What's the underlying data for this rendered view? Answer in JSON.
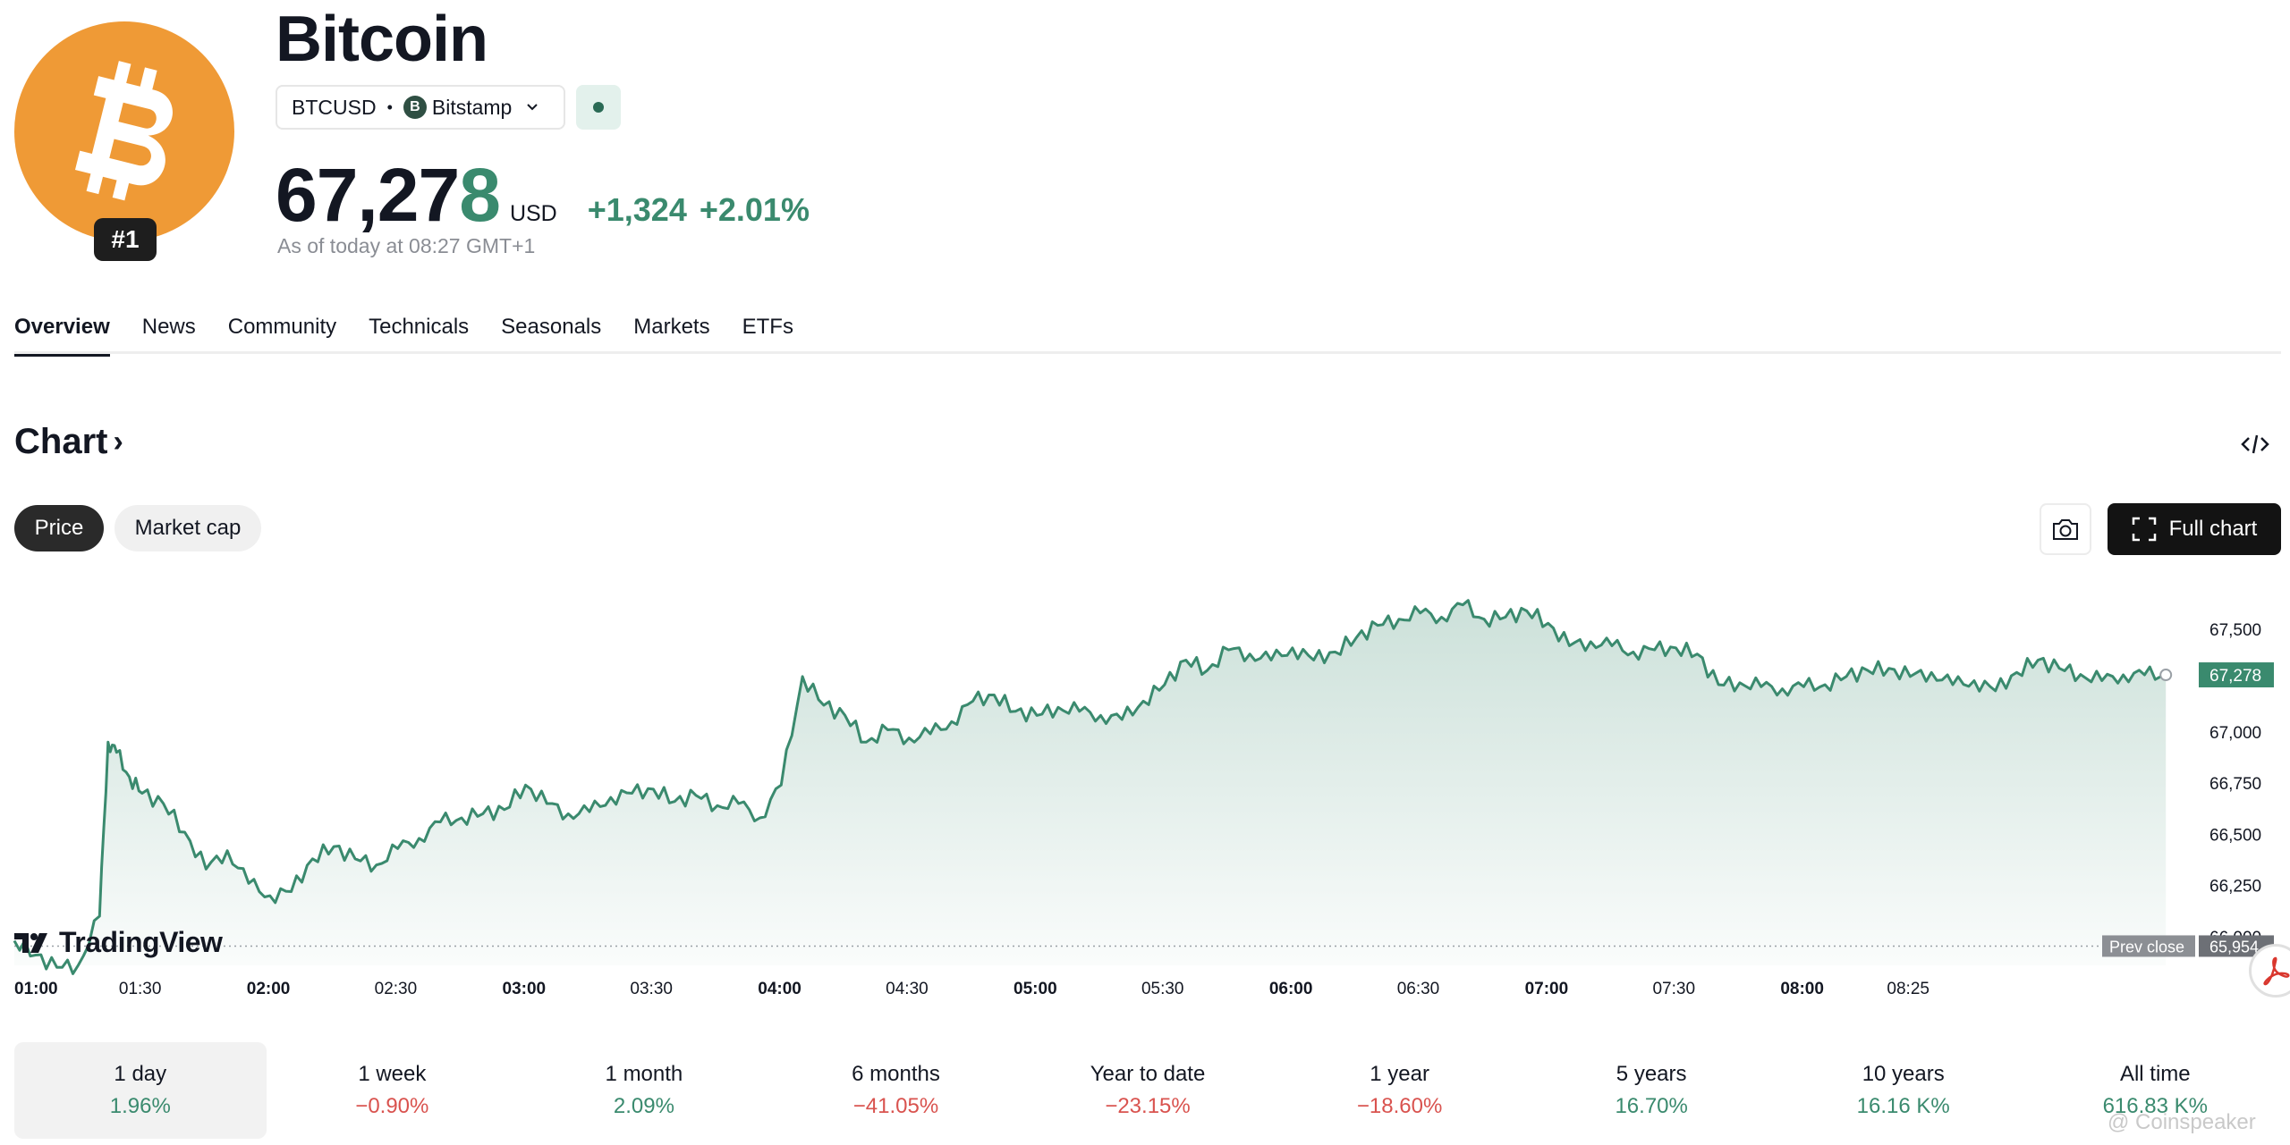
{
  "asset": {
    "name": "Bitcoin",
    "rank": "#1",
    "symbol": "BTCUSD",
    "separator": "•",
    "exchange": "Bitstamp",
    "exchange_badge": "B",
    "price_main": "67,27",
    "price_last_digit": "8",
    "currency": "USD",
    "change_abs": "+1,324",
    "change_pct": "+2.01%",
    "as_of": "As of today at 08:27 GMT+1"
  },
  "tabs": [
    "Overview",
    "News",
    "Community",
    "Technicals",
    "Seasonals",
    "Markets",
    "ETFs"
  ],
  "chart_section": {
    "title": "Chart",
    "arrow": "›",
    "pill_price": "Price",
    "pill_market_cap": "Market cap",
    "full_chart_label": "Full chart",
    "tradingview_label": "TradingView"
  },
  "chart_data": {
    "type": "area",
    "title": "",
    "xlabel": "",
    "ylabel": "",
    "x_ticks": [
      "01:00",
      "01:30",
      "02:00",
      "02:30",
      "03:00",
      "03:30",
      "04:00",
      "04:30",
      "05:00",
      "05:30",
      "06:00",
      "06:30",
      "07:00",
      "07:30",
      "08:00",
      "08:25"
    ],
    "x_ticks_bold": [
      "01:00",
      "02:00",
      "03:00",
      "04:00",
      "05:00",
      "06:00",
      "07:00",
      "08:00"
    ],
    "y_ticks": [
      "67,500",
      "67,000",
      "66,750",
      "66,500",
      "66,250",
      "66,000"
    ],
    "ylim": [
      65860,
      67780
    ],
    "last_price_label": "67,278",
    "prev_close_label": "Prev close",
    "prev_close_value_label": "65,954",
    "prev_close": 65954,
    "series": [
      {
        "x_minutes": [
          0,
          5,
          10,
          15,
          20,
          22,
          24,
          27,
          30,
          35,
          40,
          45,
          50,
          55,
          60,
          65,
          70,
          75,
          80,
          85,
          90,
          95,
          100,
          105,
          110,
          115,
          120,
          125,
          130,
          135,
          140,
          145,
          150,
          155,
          160,
          165,
          170,
          175,
          180,
          185,
          190,
          195,
          200,
          205,
          210,
          215,
          220,
          225,
          230,
          235,
          240,
          245,
          250,
          255,
          260,
          265,
          270,
          275,
          280,
          285,
          290,
          295,
          300,
          305,
          310,
          315,
          320,
          325,
          330,
          335,
          340,
          345,
          350,
          355,
          360,
          365,
          370,
          375,
          380,
          385,
          390,
          395,
          400,
          405,
          410,
          415,
          420,
          425,
          430,
          435,
          440,
          445,
          450,
          455,
          460,
          465,
          470,
          475,
          480,
          485,
          490,
          495,
          500,
          505
        ],
        "values": [
          65980,
          65910,
          65850,
          65860,
          66100,
          66950,
          66900,
          66780,
          66700,
          66650,
          66510,
          66330,
          66420,
          66260,
          66200,
          66220,
          66380,
          66440,
          66380,
          66350,
          66430,
          66480,
          66560,
          66580,
          66600,
          66620,
          66740,
          66650,
          66600,
          66610,
          66680,
          66700,
          66720,
          66660,
          66690,
          66640,
          66650,
          66580,
          66740,
          67270,
          67130,
          67080,
          66950,
          67010,
          66970,
          66990,
          67050,
          67150,
          67180,
          67100,
          67080,
          67120,
          67100,
          67080,
          67060,
          67150,
          67230,
          67350,
          67300,
          67400,
          67380,
          67350,
          67410,
          67350,
          67390,
          67460,
          67520,
          67550,
          67580,
          67560,
          67620,
          67550,
          67560,
          67590,
          67530,
          67420,
          67440,
          67420,
          67390,
          67400,
          67410,
          67380,
          67230,
          67240,
          67220,
          67210,
          67220,
          67230,
          67270,
          67300,
          67310,
          67270,
          67290,
          67230,
          67250,
          67200,
          67290,
          67350,
          67310,
          67280,
          67250,
          67278,
          67278,
          67278
        ]
      }
    ]
  },
  "periods": [
    {
      "label": "1 day",
      "value": "1.96%",
      "trend": "pos"
    },
    {
      "label": "1 week",
      "value": "−0.90%",
      "trend": "neg"
    },
    {
      "label": "1 month",
      "value": "2.09%",
      "trend": "pos"
    },
    {
      "label": "6 months",
      "value": "−41.05%",
      "trend": "neg"
    },
    {
      "label": "Year to date",
      "value": "−23.15%",
      "trend": "neg"
    },
    {
      "label": "1 year",
      "value": "−18.60%",
      "trend": "neg"
    },
    {
      "label": "5 years",
      "value": "16.70%",
      "trend": "pos"
    },
    {
      "label": "10 years",
      "value": "16.16 K%",
      "trend": "pos"
    },
    {
      "label": "All time",
      "value": "616.83 K%",
      "trend": "pos"
    }
  ],
  "watermark": "@ Coinspeaker",
  "colors": {
    "accent_green": "#3a8a6e",
    "negative_red": "#d9534f",
    "bitcoin_orange": "#ef9a36"
  },
  "icons": {
    "logo": "bitcoin-logo-icon",
    "chevron": "chevron-down-icon",
    "embed": "embed-code-icon",
    "camera": "camera-icon",
    "fullscreen": "fullscreen-icon",
    "pdf": "pdf-icon"
  }
}
